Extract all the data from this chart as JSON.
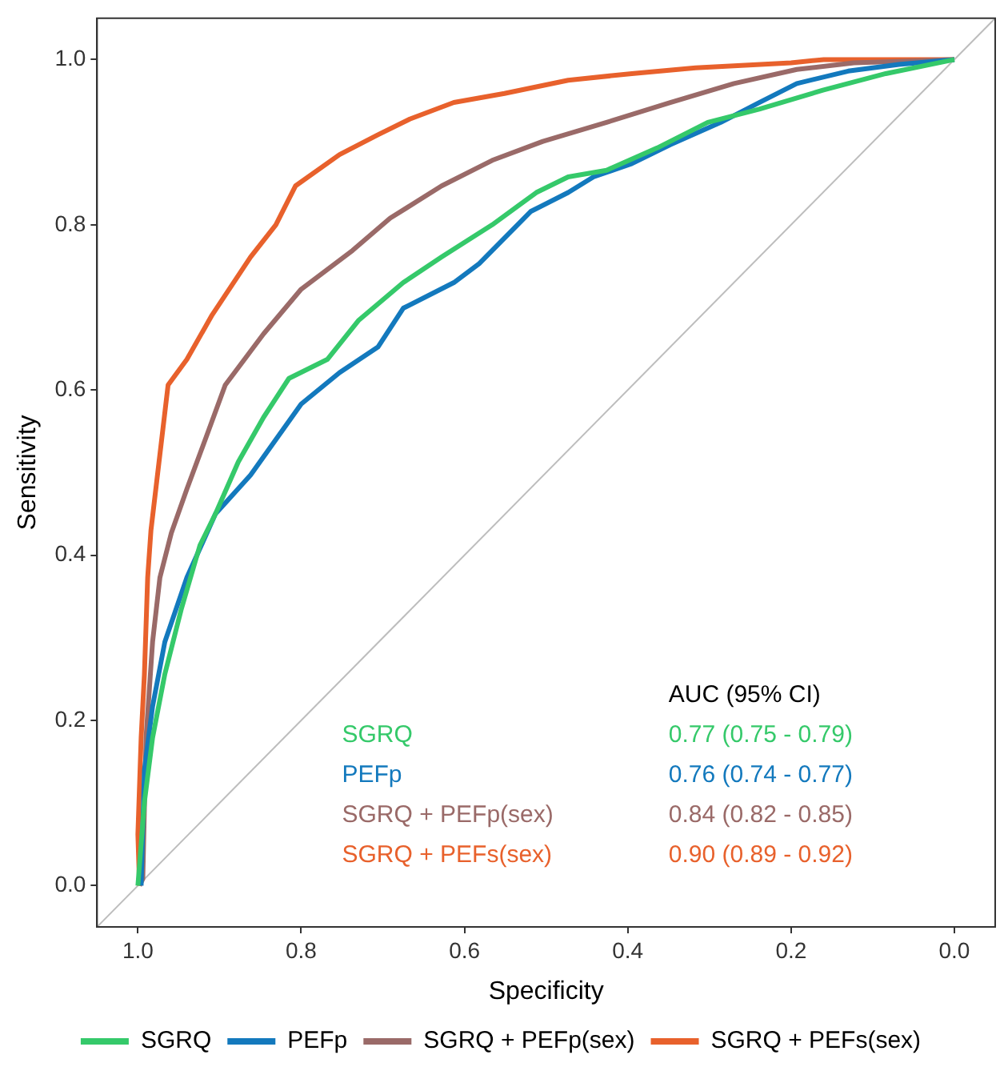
{
  "chart_data": {
    "type": "line",
    "xlabel": "Specificity",
    "ylabel": "Sensitivity",
    "xlim": [
      1.05,
      -0.05
    ],
    "ylim": [
      -0.05,
      1.05
    ],
    "xticks": [
      {
        "value": 1,
        "label": "1.0"
      },
      {
        "value": 0.8,
        "label": "0.8"
      },
      {
        "value": 0.6,
        "label": "0.6"
      },
      {
        "value": 0.4,
        "label": "0.4"
      },
      {
        "value": 0.2,
        "label": "0.2"
      },
      {
        "value": 0,
        "label": "0.0"
      }
    ],
    "yticks": [
      {
        "value": 0,
        "label": "0.0"
      },
      {
        "value": 0.2,
        "label": "0.2"
      },
      {
        "value": 0.4,
        "label": "0.4"
      },
      {
        "value": 0.6,
        "label": "0.6"
      },
      {
        "value": 0.8,
        "label": "0.8"
      },
      {
        "value": 1,
        "label": "1.0"
      }
    ],
    "grid": false,
    "legend": "bottom",
    "marker": "none",
    "line_style": "solid",
    "series": [
      {
        "name": "SGRQ",
        "color": "#35c96a",
        "x": [
          1,
          0.992,
          0.982,
          0.967,
          0.947,
          0.924,
          0.905,
          0.877,
          0.846,
          0.815,
          0.768,
          0.73,
          0.675,
          0.628,
          0.566,
          0.512,
          0.473,
          0.426,
          0.364,
          0.302,
          0.239,
          0.161,
          0.084,
          0
        ],
        "values": [
          0,
          0.101,
          0.179,
          0.256,
          0.334,
          0.412,
          0.45,
          0.513,
          0.567,
          0.614,
          0.637,
          0.684,
          0.73,
          0.761,
          0.8,
          0.839,
          0.858,
          0.866,
          0.893,
          0.924,
          0.94,
          0.963,
          0.983,
          1
        ]
      },
      {
        "name": "PEFp",
        "color": "#1379bd",
        "x": [
          0.996,
          0.992,
          0.982,
          0.967,
          0.94,
          0.905,
          0.862,
          0.8,
          0.753,
          0.706,
          0.675,
          0.613,
          0.582,
          0.558,
          0.519,
          0.473,
          0.442,
          0.395,
          0.348,
          0.286,
          0.239,
          0.193,
          0.13,
          0.068,
          0
        ],
        "values": [
          0,
          0.14,
          0.217,
          0.295,
          0.373,
          0.45,
          0.497,
          0.583,
          0.621,
          0.652,
          0.699,
          0.73,
          0.753,
          0.777,
          0.816,
          0.839,
          0.858,
          0.874,
          0.897,
          0.924,
          0.948,
          0.971,
          0.986,
          0.994,
          1
        ]
      },
      {
        "name": "SGRQ + PEFp(sex)",
        "color": "#9a6a68",
        "x": [
          0.998,
          0.994,
          0.99,
          0.982,
          0.973,
          0.959,
          0.94,
          0.916,
          0.893,
          0.846,
          0.8,
          0.737,
          0.691,
          0.628,
          0.566,
          0.504,
          0.426,
          0.348,
          0.27,
          0.193,
          0.123,
          0
        ],
        "values": [
          0,
          0.008,
          0.179,
          0.295,
          0.373,
          0.427,
          0.48,
          0.544,
          0.606,
          0.668,
          0.722,
          0.769,
          0.808,
          0.847,
          0.878,
          0.901,
          0.924,
          0.948,
          0.971,
          0.988,
          0.996,
          1
        ]
      },
      {
        "name": "SGRQ + PEFs(sex)",
        "color": "#e8612c",
        "x": [
          0.998,
          1,
          0.996,
          0.992,
          0.988,
          0.984,
          0.963,
          0.94,
          0.909,
          0.862,
          0.831,
          0.807,
          0.753,
          0.706,
          0.667,
          0.613,
          0.551,
          0.473,
          0.395,
          0.317,
          0.2,
          0.16,
          0
        ],
        "values": [
          0,
          0.062,
          0.179,
          0.256,
          0.373,
          0.43,
          0.606,
          0.637,
          0.691,
          0.761,
          0.8,
          0.847,
          0.885,
          0.909,
          0.928,
          0.948,
          0.959,
          0.975,
          0.983,
          0.99,
          0.996,
          1,
          1
        ]
      },
      {
        "color": "#bdbdbd",
        "x": [
          1.05,
          -0.05
        ],
        "values": [
          -0.05,
          1.05
        ]
      }
    ],
    "annotations": [
      "AUC (95% CI)",
      "SGRQ",
      "0.77 (0.75 - 0.79)",
      "PEFp",
      "0.76 (0.74 - 0.77)",
      "SGRQ + PEFp(sex)",
      "0.84 (0.82 - 0.85)",
      "SGRQ + PEFs(sex)",
      "0.90 (0.89 - 0.92)"
    ]
  }
}
